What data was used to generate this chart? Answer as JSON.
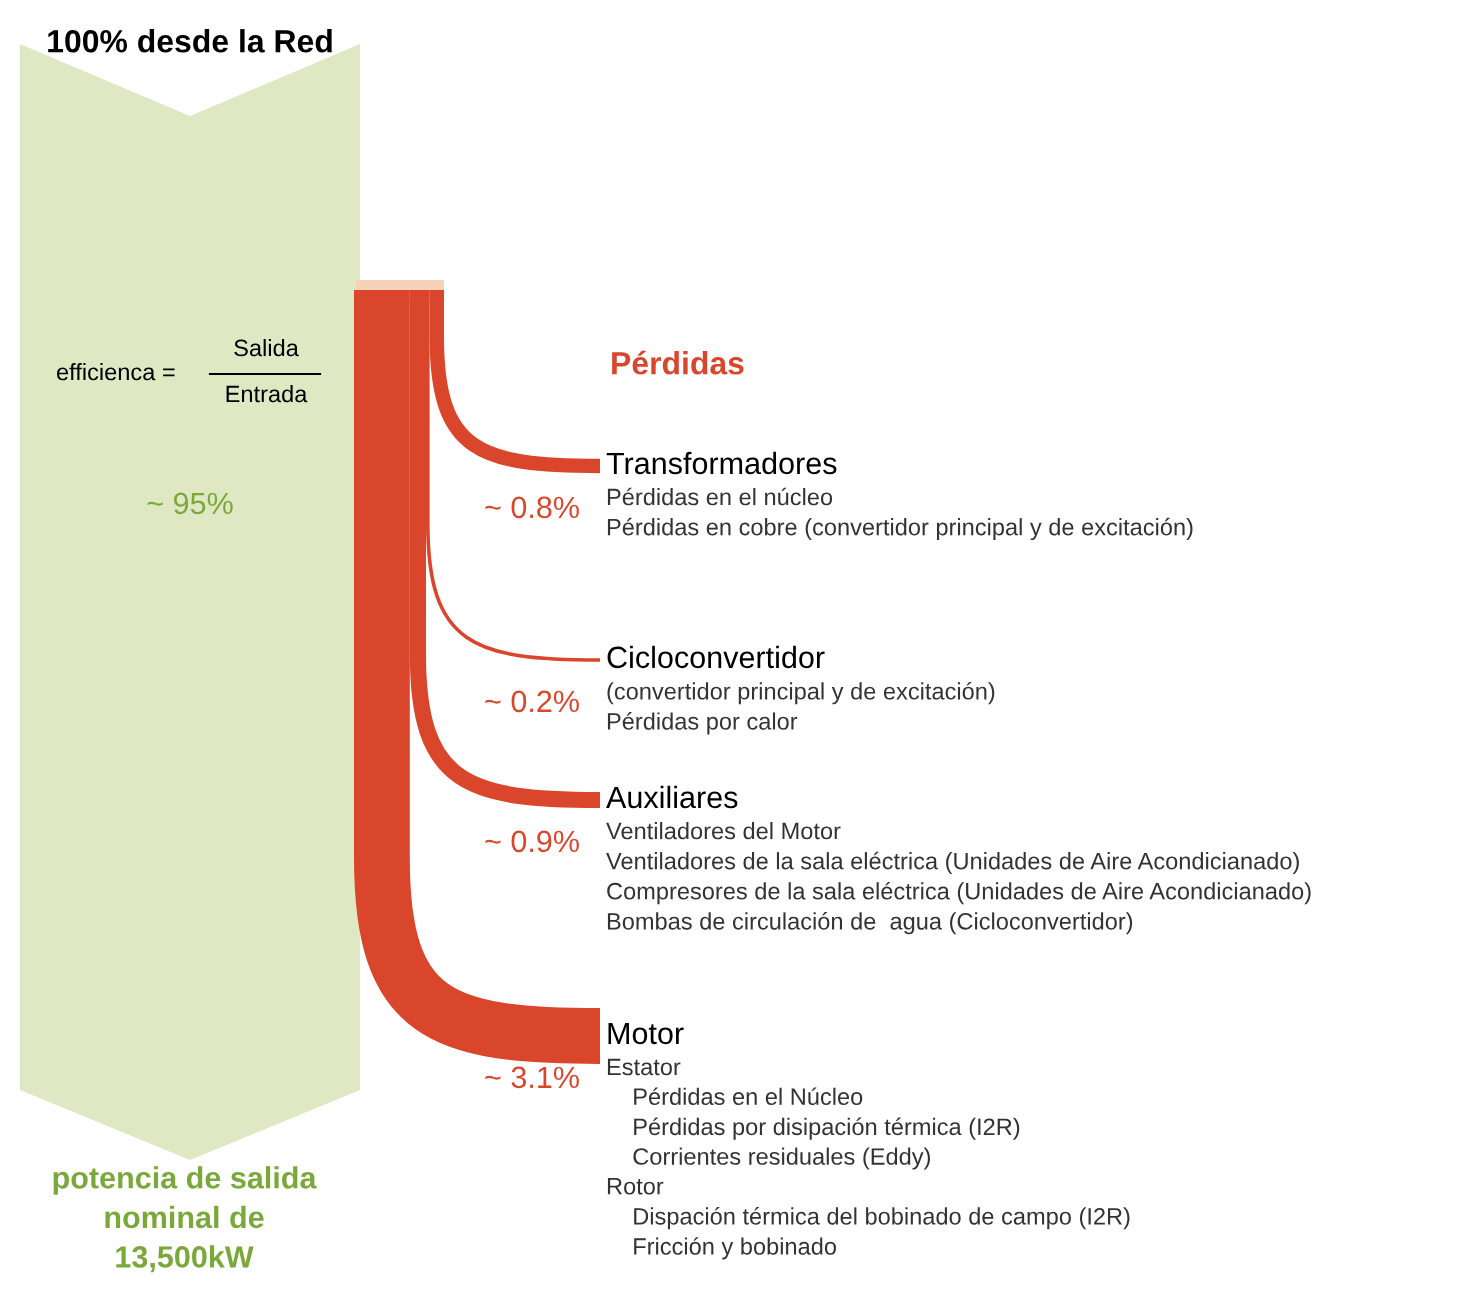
{
  "chart_data": {
    "type": "other",
    "title": "100% desde la Red",
    "subtitle": "Pérdidas",
    "categories": [
      "Transformadores",
      "Cicloconvertidor",
      "Auxiliares",
      "Motor"
    ],
    "values": [
      0.8,
      0.2,
      0.9,
      3.1
    ],
    "value_labels": [
      "~ 0.8%",
      "~ 0.2%",
      "~ 0.9%",
      "~ 3.1%"
    ],
    "colors": [
      "#d9462b",
      "#d9462b",
      "#d9462b",
      "#d9462b"
    ],
    "annotations": [
      "efficienca =",
      "Salida",
      "Entrada",
      "~ 95%",
      "potencia de salida\nnominal de\n13,500kW",
      "Pérdidas en el núcleo\nPérdidas en cobre (convertidor principal y de excitación)",
      "(convertidor principal y de excitación)\nPérdidas por calor",
      "Ventiladores del Motor\nVentiladores de la sala eléctrica (Unidades de Aire Acondicianado)\nCompresores de la sala eléctrica (Unidades de Aire Acondicianado)\nBombas de circulación de  agua (Cicloconvertidor)",
      "Estator\n    Pérdidas en el Núcleo\n    Pérdidas por disipación térmica (I2R)\n    Corrientes residuales (Eddy)\nRotor\n    Dispación térmica del bobinado de campo (I2R)\n    Fricción y bobinado"
    ]
  }
}
